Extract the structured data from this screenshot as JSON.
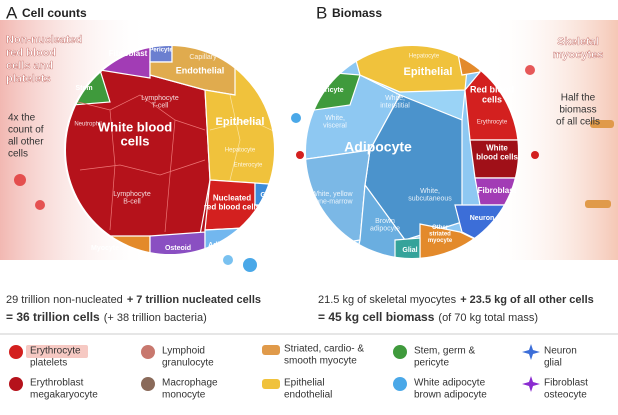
{
  "panels": [
    {
      "letter": "A",
      "title": "Cell counts",
      "callout": [
        "Non-nucleated",
        "red blood",
        "cells and",
        "platelets"
      ],
      "note": [
        "4x the",
        "count of",
        "all other",
        "cells"
      ],
      "regions": [
        {
          "label": [
            "White blood",
            "cells"
          ]
        },
        {
          "label": [
            "Epithelial"
          ]
        },
        {
          "label": [
            "Capillary"
          ]
        },
        {
          "label": [
            "Endothelial"
          ]
        },
        {
          "label": [
            "Fibroblast"
          ]
        },
        {
          "label": [
            "Stem"
          ]
        },
        {
          "label": [
            "Pericyte"
          ]
        },
        {
          "label": [
            "Nucleated",
            "red blood cells"
          ]
        },
        {
          "label": [
            "Glial"
          ]
        },
        {
          "label": [
            "Adipocyte"
          ]
        },
        {
          "label": [
            "Osteoid"
          ]
        },
        {
          "label": [
            "Myocyte"
          ]
        },
        {
          "label": [
            "Lymphocyte",
            "T-cell"
          ]
        },
        {
          "label": [
            "Lymphocyte",
            "B-cell"
          ]
        },
        {
          "label": [
            "Neutrophil"
          ]
        },
        {
          "label": [
            "Hepatocyte"
          ]
        },
        {
          "label": [
            "Enterocyte"
          ]
        }
      ],
      "summary": [
        [
          "29 trillion non-nucleated",
          "+ 7 trillion nucleated cells"
        ],
        [
          "= 36 trillion cells",
          "(+ 38 trillion bacteria)"
        ]
      ]
    },
    {
      "letter": "B",
      "title": "Biomass",
      "callout": [
        "Skeletal",
        "myocytes"
      ],
      "note": [
        "Half the",
        "biomass",
        "of all cells"
      ],
      "regions": [
        {
          "label": [
            "Adipocyte"
          ]
        },
        {
          "label": [
            "White,",
            "visceral"
          ]
        },
        {
          "label": [
            "White,",
            "interstitial"
          ]
        },
        {
          "label": [
            "White,",
            "subcutaneous"
          ]
        },
        {
          "label": [
            "White, yellow",
            "bone-marrow"
          ]
        },
        {
          "label": [
            "Brown",
            "adipocyte"
          ]
        },
        {
          "label": [
            "Epithelial"
          ]
        },
        {
          "label": [
            "Hepatocyte"
          ]
        },
        {
          "label": [
            "Pericyte"
          ]
        },
        {
          "label": [
            "Red blood",
            "cells"
          ]
        },
        {
          "label": [
            "Erythrocyte"
          ]
        },
        {
          "label": [
            "White",
            "blood cells"
          ]
        },
        {
          "label": [
            "Fibroblast"
          ]
        },
        {
          "label": [
            "Neuron"
          ]
        },
        {
          "label": [
            "Glial"
          ]
        },
        {
          "label": [
            "Other",
            "striated",
            "myocyte"
          ]
        },
        {
          "label": [
            "Smooth",
            "myocyte"
          ]
        }
      ],
      "summary": [
        [
          "21.5 kg of skeletal myocytes",
          "+ 23.5 kg of all other cells"
        ],
        [
          "= 45 kg cell biomass",
          "(of 70 kg total mass)"
        ]
      ]
    }
  ],
  "legend": [
    {
      "lines": [
        "Erythrocyte",
        "platelets"
      ]
    },
    {
      "lines": [
        "Erythroblast",
        "megakaryocyte"
      ]
    },
    {
      "lines": [
        "Lymphoid",
        "granulocyte"
      ]
    },
    {
      "lines": [
        "Macrophage",
        "monocyte"
      ]
    },
    {
      "lines": [
        "Striated, cardio- &",
        "smooth myocyte"
      ]
    },
    {
      "lines": [
        "Epithelial",
        "endothelial"
      ]
    },
    {
      "lines": [
        "Stem, germ &",
        "pericyte"
      ]
    },
    {
      "lines": [
        "White adipocyte",
        "brown adipocyte"
      ]
    },
    {
      "lines": [
        "Neuron",
        "glial"
      ]
    },
    {
      "lines": [
        "Fibroblast",
        "osteocyte"
      ]
    }
  ]
}
